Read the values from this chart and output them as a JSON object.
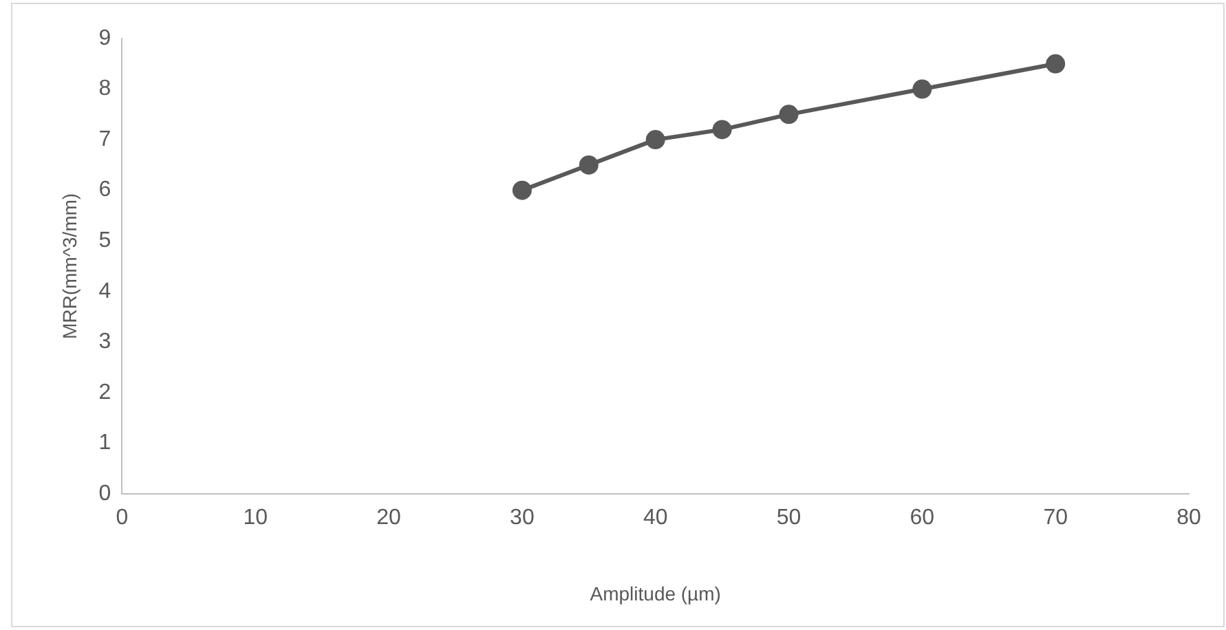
{
  "chart_data": {
    "type": "line",
    "xlabel": "Amplitude (µm)",
    "ylabel": "MRR(mm^3/mm)",
    "x": [
      30,
      35,
      40,
      45,
      50,
      60,
      70
    ],
    "series": [
      {
        "color": "#595959",
        "values": [
          6,
          6.5,
          7,
          7.2,
          7.5,
          8,
          8.5
        ]
      }
    ],
    "xlim": [
      0,
      80
    ],
    "xticks": [
      0,
      10,
      20,
      30,
      40,
      50,
      60,
      70,
      80
    ],
    "ylim": [
      0,
      9
    ],
    "yticks": [
      0,
      1,
      2,
      3,
      4,
      5,
      6,
      7,
      8,
      9
    ],
    "grid": false,
    "legend": false,
    "marker": "circle",
    "line_style": "solid"
  }
}
